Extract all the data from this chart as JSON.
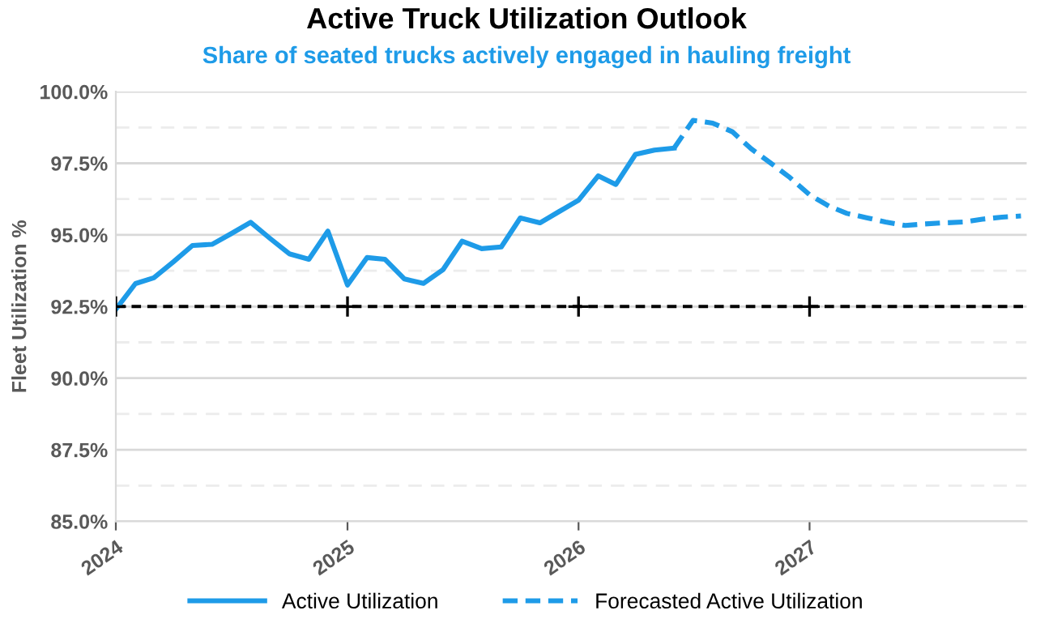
{
  "chart_data": {
    "type": "line",
    "title": "Active Truck Utilization Outlook",
    "subtitle": "Share of seated trucks actively engaged in hauling freight",
    "ylabel": "Fleet Utilization %",
    "series": [
      {
        "name": "Active Utilization",
        "color": "#1e9be8",
        "line_style": "solid",
        "x": [
          "2024-01",
          "2024-02",
          "2024-03",
          "2024-04",
          "2024-05",
          "2024-06",
          "2024-07",
          "2024-08",
          "2024-09",
          "2024-10",
          "2024-11",
          "2024-12",
          "2025-01",
          "2025-02",
          "2025-03",
          "2025-04",
          "2025-05",
          "2025-06",
          "2025-07",
          "2025-08",
          "2025-09",
          "2025-10",
          "2025-11",
          "2025-12",
          "2026-01",
          "2026-02",
          "2026-03",
          "2026-04",
          "2026-05",
          "2026-06"
        ],
        "values": [
          92.4,
          93.3,
          93.5,
          94.06,
          94.63,
          94.67,
          95.04,
          95.44,
          94.87,
          94.34,
          94.15,
          95.13,
          93.25,
          94.21,
          94.15,
          93.46,
          93.31,
          93.79,
          94.78,
          94.52,
          94.58,
          95.59,
          95.42,
          95.81,
          96.21,
          97.06,
          96.76,
          97.81,
          97.96,
          98.03
        ]
      },
      {
        "name": "Forecasted Active Utilization",
        "color": "#1e9be8",
        "line_style": "dashed",
        "x": [
          "2026-06",
          "2026-07",
          "2026-08",
          "2026-09",
          "2026-10",
          "2026-11",
          "2026-12",
          "2027-01",
          "2027-02",
          "2027-03",
          "2027-04",
          "2027-05",
          "2027-06",
          "2027-07",
          "2027-08",
          "2027-09",
          "2027-10",
          "2027-11",
          "2027-12"
        ],
        "values": [
          98.03,
          99.0,
          98.9,
          98.6,
          98.0,
          97.5,
          97.0,
          96.4,
          96.0,
          95.75,
          95.6,
          95.45,
          95.33,
          95.38,
          95.42,
          95.45,
          95.55,
          95.62,
          95.66
        ]
      },
      {
        "type": "scatter",
        "color": "#000000",
        "marker": "cross",
        "x": [
          "2024-01",
          "2025-01",
          "2026-01",
          "2027-01"
        ],
        "values": [
          92.5,
          92.5,
          92.5,
          92.5
        ]
      }
    ],
    "xlim": [
      "2024-01-01",
      "2027-12-10"
    ],
    "xticks": [
      {
        "value": "2024-01-01",
        "label": "2024"
      },
      {
        "value": "2025-01-01",
        "label": "2025"
      },
      {
        "value": "2026-01-01",
        "label": "2026"
      },
      {
        "value": "2027-01-01",
        "label": "2027"
      }
    ],
    "ylim": [
      85,
      100
    ],
    "yticks": [
      {
        "value": 85,
        "label": "85.0%"
      },
      {
        "value": 86.25,
        "label": null
      },
      {
        "value": 87.5,
        "label": "87.5%"
      },
      {
        "value": 88.75,
        "label": null
      },
      {
        "value": 90,
        "label": "90.0%"
      },
      {
        "value": 91.25,
        "label": null
      },
      {
        "value": 92.5,
        "label": "92.5%"
      },
      {
        "value": 93.75,
        "label": null
      },
      {
        "value": 95,
        "label": "95.0%"
      },
      {
        "value": 96.25,
        "label": null
      },
      {
        "value": 97.5,
        "label": "97.5%"
      },
      {
        "value": 98.75,
        "label": null
      },
      {
        "value": 100,
        "label": "100.0%"
      }
    ],
    "ref_lines": [
      {
        "axis": "y",
        "value": 92.5,
        "color": "#000000",
        "line_style": "dashed"
      }
    ],
    "grid": "y",
    "legend": "bottom",
    "marker": "none"
  }
}
